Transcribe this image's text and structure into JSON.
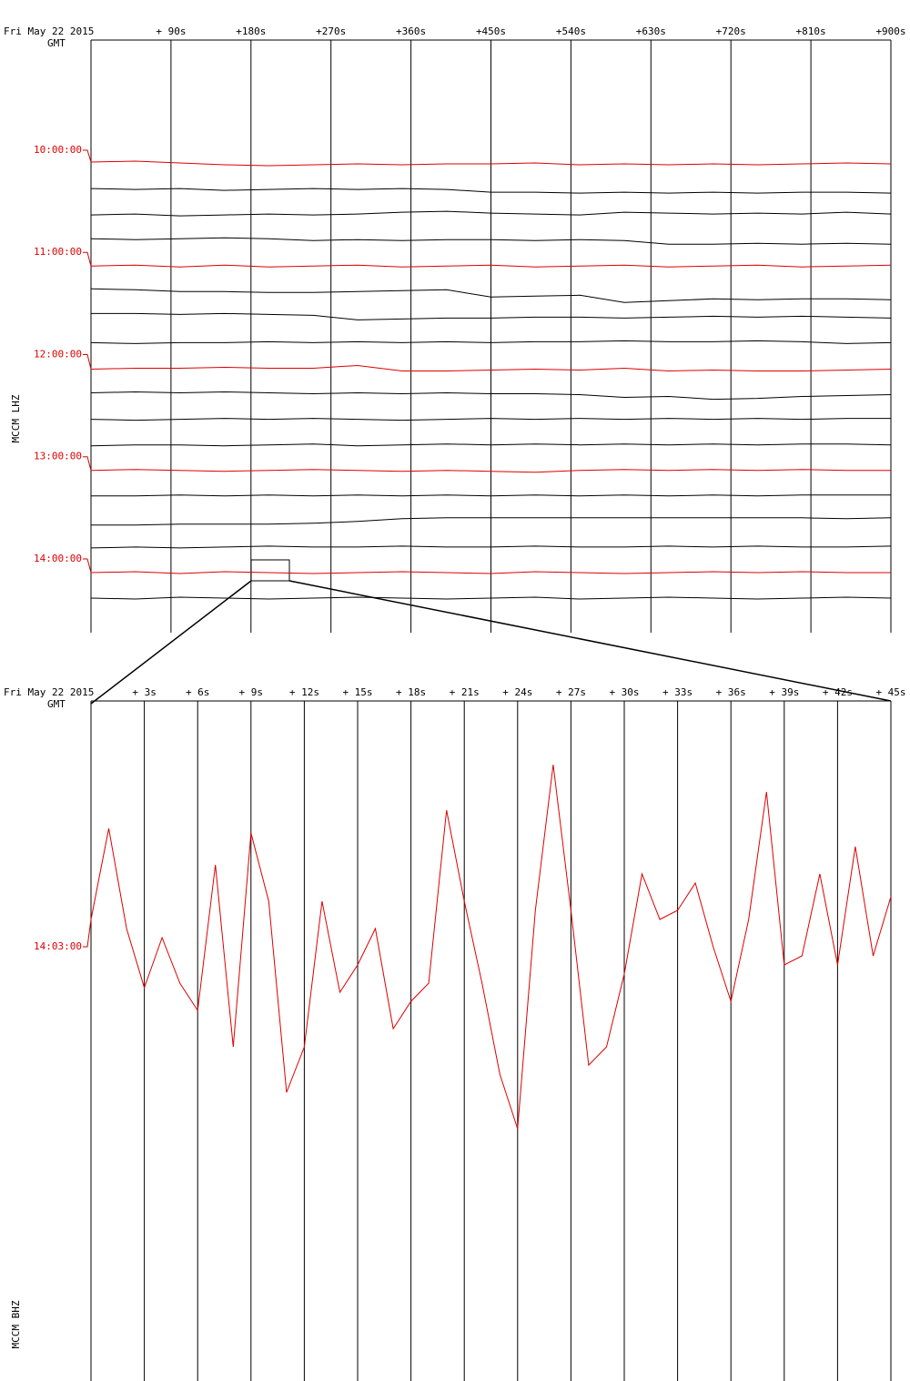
{
  "chart_data": [
    {
      "type": "helicorder",
      "date": "Fri May 22 2015",
      "timezone": "GMT",
      "ylabel": "MCCM LHZ",
      "xlim": [
        0,
        900
      ],
      "ylim": [
        -14,
        14
      ],
      "xticks": [
        {
          "value": 90,
          "label": "+ 90s"
        },
        {
          "value": 180,
          "label": "+180s"
        },
        {
          "value": 270,
          "label": "+270s"
        },
        {
          "value": 360,
          "label": "+360s"
        },
        {
          "value": 450,
          "label": "+450s"
        },
        {
          "value": 540,
          "label": "+540s"
        },
        {
          "value": 630,
          "label": "+630s"
        },
        {
          "value": 720,
          "label": "+720s"
        },
        {
          "value": 810,
          "label": "+810s"
        },
        {
          "value": 900,
          "label": "+900s"
        }
      ],
      "x": [
        0,
        50,
        100,
        150,
        200,
        250,
        300,
        350,
        400,
        450,
        500,
        550,
        600,
        650,
        700,
        750,
        800,
        850,
        900
      ],
      "series": [
        {
          "label": "10:00:00",
          "color": "#d00",
          "values": [
            2,
            3,
            1,
            -1,
            -2,
            -1,
            0,
            -1,
            0,
            0,
            1,
            -1,
            0,
            -1,
            0,
            -1,
            0,
            1,
            0
          ]
        },
        {
          "color": "#000",
          "values": [
            1,
            0,
            1,
            -1,
            0,
            1,
            0,
            1,
            0,
            -3,
            -3,
            -4,
            -3,
            -4,
            -3,
            -4,
            -3,
            -3,
            -4
          ]
        },
        {
          "color": "#000",
          "values": [
            0,
            1,
            -1,
            0,
            1,
            0,
            1,
            3,
            4,
            2,
            1,
            0,
            3,
            2,
            1,
            2,
            1,
            3,
            1
          ]
        },
        {
          "color": "#000",
          "values": [
            2,
            1,
            2,
            3,
            2,
            0,
            1,
            0,
            1,
            1,
            0,
            1,
            0,
            -4,
            -4,
            -3,
            -4,
            -3,
            -4
          ]
        },
        {
          "label": "11:00:00",
          "color": "#d00",
          "values": [
            0,
            1,
            -1,
            1,
            -1,
            0,
            1,
            -1,
            0,
            1,
            -1,
            0,
            1,
            -1,
            0,
            1,
            -1,
            0,
            1
          ]
        },
        {
          "color": "#000",
          "values": [
            3,
            2,
            0,
            0,
            -1,
            -1,
            0,
            1,
            2,
            -6,
            -5,
            -4,
            -12,
            -10,
            -8,
            -9,
            -8,
            -8,
            -9
          ]
        },
        {
          "color": "#000",
          "values": [
            4,
            4,
            3,
            4,
            3,
            2,
            -3,
            -2,
            -1,
            -1,
            0,
            0,
            -1,
            0,
            1,
            0,
            1,
            0,
            -1
          ]
        },
        {
          "color": "#000",
          "values": [
            0,
            -1,
            0,
            0,
            1,
            0,
            1,
            0,
            1,
            0,
            1,
            1,
            2,
            1,
            1,
            2,
            1,
            -1,
            0
          ]
        },
        {
          "label": "12:00:00",
          "color": "#d00",
          "values": [
            -1,
            0,
            0,
            1,
            0,
            0,
            3,
            -3,
            -3,
            -2,
            -1,
            -2,
            0,
            -3,
            -2,
            -3,
            -3,
            -2,
            -1
          ]
        },
        {
          "color": "#000",
          "values": [
            1,
            2,
            1,
            2,
            1,
            0,
            1,
            0,
            1,
            0,
            0,
            -1,
            -4,
            -3,
            -6,
            -5,
            -3,
            -2,
            -1
          ]
        },
        {
          "color": "#000",
          "values": [
            0,
            -1,
            0,
            1,
            0,
            1,
            0,
            -1,
            0,
            1,
            0,
            1,
            0,
            1,
            0,
            1,
            0,
            1,
            1
          ]
        },
        {
          "color": "#000",
          "values": [
            -1,
            0,
            0,
            -1,
            0,
            1,
            -1,
            0,
            1,
            0,
            1,
            0,
            1,
            0,
            1,
            0,
            1,
            1,
            0
          ]
        },
        {
          "label": "13:00:00",
          "color": "#d00",
          "values": [
            0,
            1,
            0,
            -1,
            0,
            1,
            0,
            -1,
            0,
            -1,
            -2,
            0,
            1,
            0,
            1,
            0,
            1,
            0,
            0
          ]
        },
        {
          "color": "#000",
          "values": [
            0,
            0,
            1,
            0,
            1,
            0,
            1,
            0,
            1,
            0,
            1,
            0,
            1,
            0,
            1,
            0,
            1,
            1,
            1
          ]
        },
        {
          "color": "#000",
          "values": [
            -4,
            -4,
            -3,
            -3,
            -3,
            -2,
            0,
            3,
            4,
            4,
            4,
            4,
            4,
            4,
            4,
            4,
            4,
            3,
            4
          ]
        },
        {
          "color": "#000",
          "values": [
            -1,
            0,
            -1,
            0,
            1,
            0,
            0,
            1,
            0,
            0,
            1,
            0,
            0,
            1,
            0,
            1,
            0,
            0,
            1
          ]
        },
        {
          "label": "14:00:00",
          "color": "#d00",
          "values": [
            0,
            1,
            -1,
            1,
            0,
            -1,
            0,
            1,
            0,
            -1,
            1,
            0,
            -1,
            0,
            1,
            0,
            1,
            0,
            0
          ]
        },
        {
          "color": "#000",
          "values": [
            0,
            -1,
            1,
            0,
            -1,
            0,
            1,
            0,
            -1,
            0,
            1,
            -1,
            0,
            1,
            0,
            -1,
            0,
            1,
            0
          ]
        }
      ]
    },
    {
      "type": "helicorder",
      "date": "Fri May 22 2015",
      "timezone": "GMT",
      "ylabel": "MCCM BHZ",
      "xlim": [
        0,
        45
      ],
      "ylim": [
        -477,
        270
      ],
      "xticks": [
        {
          "value": 3,
          "label": "+ 3s"
        },
        {
          "value": 6,
          "label": "+ 6s"
        },
        {
          "value": 9,
          "label": "+ 9s"
        },
        {
          "value": 12,
          "label": "+ 12s"
        },
        {
          "value": 15,
          "label": "+ 15s"
        },
        {
          "value": 18,
          "label": "+ 18s"
        },
        {
          "value": 21,
          "label": "+ 21s"
        },
        {
          "value": 24,
          "label": "+ 24s"
        },
        {
          "value": 27,
          "label": "+ 27s"
        },
        {
          "value": 30,
          "label": "+ 30s"
        },
        {
          "value": 33,
          "label": "+ 33s"
        },
        {
          "value": 36,
          "label": "+ 36s"
        },
        {
          "value": 39,
          "label": "+ 39s"
        },
        {
          "value": 42,
          "label": "+ 42s"
        },
        {
          "value": 45,
          "label": "+ 45s"
        }
      ],
      "x": [
        0,
        1,
        2,
        3,
        4,
        5,
        6,
        7,
        8,
        9,
        10,
        11,
        12,
        13,
        14,
        15,
        16,
        17,
        18,
        19,
        20,
        21,
        22,
        23,
        24,
        25,
        26,
        27,
        28,
        29,
        30,
        31,
        32,
        33,
        34,
        35,
        36,
        37,
        38,
        39,
        40,
        41,
        42,
        43,
        44,
        45
      ],
      "series": [
        {
          "label": "14:03:00",
          "color": "#d00",
          "values": [
            30,
            130,
            20,
            -45,
            10,
            -40,
            -70,
            90,
            -110,
            125,
            50,
            -160,
            -110,
            50,
            -50,
            -20,
            20,
            -90,
            -60,
            -40,
            150,
            50,
            -40,
            -140,
            -200,
            40,
            200,
            40,
            -130,
            -110,
            -30,
            80,
            30,
            40,
            70,
            0,
            -60,
            30,
            170,
            -20,
            -10,
            80,
            -20,
            110,
            -10,
            55
          ]
        }
      ]
    }
  ]
}
